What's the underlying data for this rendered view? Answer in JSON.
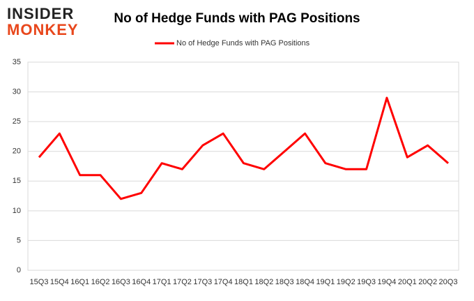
{
  "logo": {
    "line1": "INSIDER",
    "line2": "MONKEY"
  },
  "chart_data": {
    "type": "line",
    "title": "No of Hedge Funds with PAG Positions",
    "categories": [
      "15Q3",
      "15Q4",
      "16Q1",
      "16Q2",
      "16Q3",
      "16Q4",
      "17Q1",
      "17Q2",
      "17Q3",
      "17Q4",
      "18Q1",
      "18Q2",
      "18Q3",
      "18Q4",
      "19Q1",
      "19Q2",
      "19Q3",
      "19Q4",
      "20Q1",
      "20Q2",
      "20Q3"
    ],
    "series": [
      {
        "name": "No of Hedge Funds with PAG Positions",
        "color": "#ff0000",
        "values": [
          19,
          23,
          16,
          16,
          12,
          13,
          18,
          17,
          21,
          23,
          18,
          17,
          20,
          23,
          18,
          17,
          17,
          29,
          19,
          21,
          18
        ]
      }
    ],
    "ylim": [
      0,
      35
    ],
    "yticks": [
      0,
      5,
      10,
      15,
      20,
      25,
      30,
      35
    ],
    "grid": true,
    "legend": "top"
  }
}
